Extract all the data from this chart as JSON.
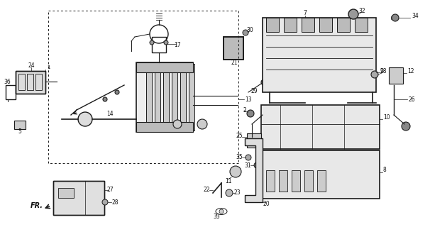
{
  "bg_color": "#ffffff",
  "fig_width": 6.06,
  "fig_height": 3.2,
  "dpi": 100,
  "line_color": "#1a1a1a",
  "label_color": "#111111"
}
